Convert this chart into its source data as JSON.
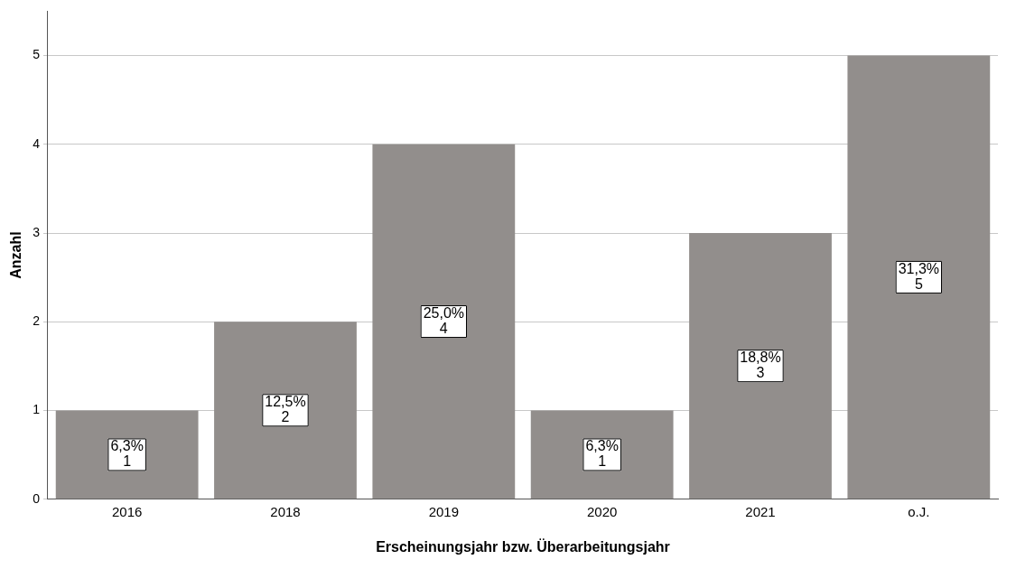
{
  "chart_data": {
    "type": "bar",
    "xlabel": "Erscheinungsjahr bzw. Überarbeitungsjahr",
    "ylabel": "Anzahl",
    "categories": [
      "2016",
      "2018",
      "2019",
      "2020",
      "2021",
      "o.J."
    ],
    "values": [
      1,
      2,
      4,
      1,
      3,
      5
    ],
    "color": "#928e8c",
    "value_labels": [
      "6,3%\n1",
      "12,5%\n2",
      "25,0%\n4",
      "6,3%\n1",
      "18,8%\n3",
      "31,3%\n5"
    ],
    "ylim": [
      0,
      5.5
    ],
    "yticks": [
      0,
      1,
      2,
      3,
      4,
      5
    ],
    "grid": "y",
    "legend": false
  }
}
